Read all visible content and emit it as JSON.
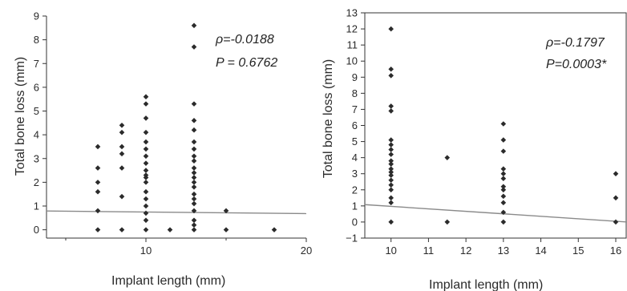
{
  "chart_data": [
    {
      "type": "scatter",
      "xlabel": "Implant length (mm)",
      "ylabel": "Total bone loss (mm)",
      "xlim": [
        3.8,
        20
      ],
      "ylim": [
        -0.35,
        9
      ],
      "xticks": [
        10,
        20
      ],
      "yticks": [
        0,
        1,
        2,
        3,
        4,
        5,
        6,
        7,
        8,
        9
      ],
      "x_tick_labels": [
        "10",
        "20"
      ],
      "y_tick_labels": [
        "0",
        "1",
        "2",
        "3",
        "4",
        "5",
        "6",
        "7",
        "8",
        "9"
      ],
      "annotations": [
        "ρ=-0.0188",
        "P = 0.6762"
      ],
      "trendline": {
        "x": [
          3.8,
          20
        ],
        "y": [
          0.79,
          0.68
        ]
      },
      "points": [
        [
          7,
          3.5
        ],
        [
          7,
          2.6
        ],
        [
          7,
          2.0
        ],
        [
          7,
          1.6
        ],
        [
          7,
          0.8
        ],
        [
          7,
          0.0
        ],
        [
          8.5,
          4.4
        ],
        [
          8.5,
          4.1
        ],
        [
          8.5,
          3.5
        ],
        [
          8.5,
          3.2
        ],
        [
          8.5,
          2.6
        ],
        [
          8.5,
          1.4
        ],
        [
          8.5,
          0.0
        ],
        [
          10,
          5.6
        ],
        [
          10,
          5.3
        ],
        [
          10,
          4.7
        ],
        [
          10,
          4.1
        ],
        [
          10,
          3.7
        ],
        [
          10,
          3.4
        ],
        [
          10,
          3.1
        ],
        [
          10,
          2.8
        ],
        [
          10,
          2.5
        ],
        [
          10,
          2.3
        ],
        [
          10,
          2.2
        ],
        [
          10,
          2.0
        ],
        [
          10,
          1.6
        ],
        [
          10,
          1.3
        ],
        [
          10,
          1.0
        ],
        [
          10,
          0.7
        ],
        [
          10,
          0.4
        ],
        [
          10,
          0.0
        ],
        [
          11.5,
          0.0
        ],
        [
          13,
          8.6
        ],
        [
          13,
          7.7
        ],
        [
          13,
          5.3
        ],
        [
          13,
          4.6
        ],
        [
          13,
          4.2
        ],
        [
          13,
          3.7
        ],
        [
          13,
          3.4
        ],
        [
          13,
          3.1
        ],
        [
          13,
          2.9
        ],
        [
          13,
          2.6
        ],
        [
          13,
          2.4
        ],
        [
          13,
          2.2
        ],
        [
          13,
          2.0
        ],
        [
          13,
          1.8
        ],
        [
          13,
          1.5
        ],
        [
          13,
          1.3
        ],
        [
          13,
          1.1
        ],
        [
          13,
          0.8
        ],
        [
          13,
          0.4
        ],
        [
          13,
          0.2
        ],
        [
          13,
          0.0
        ],
        [
          15,
          0.8
        ],
        [
          15,
          0.0
        ],
        [
          18,
          0.0
        ]
      ]
    },
    {
      "type": "scatter",
      "xlabel": "Implant length (mm)",
      "ylabel": "Total bone loss (mm)",
      "xlim": [
        9.3,
        16.3
      ],
      "ylim": [
        -1,
        13
      ],
      "xticks": [
        10,
        11,
        12,
        13,
        14,
        15,
        16
      ],
      "yticks": [
        -1,
        0,
        1,
        2,
        3,
        4,
        5,
        6,
        7,
        8,
        9,
        10,
        11,
        12,
        13
      ],
      "x_tick_labels": [
        "10",
        "11",
        "12",
        "13",
        "14",
        "15",
        "16"
      ],
      "y_tick_labels": [
        "−1",
        "0",
        "1",
        "2",
        "3",
        "4",
        "5",
        "6",
        "7",
        "8",
        "9",
        "10",
        "11",
        "12",
        "13"
      ],
      "annotations": [
        "ρ=-0.1797",
        "P=0.0003*"
      ],
      "trendline": {
        "x": [
          9.3,
          16.3
        ],
        "y": [
          1.08,
          0.0
        ]
      },
      "points": [
        [
          10,
          12.0
        ],
        [
          10,
          9.5
        ],
        [
          10,
          9.1
        ],
        [
          10,
          7.2
        ],
        [
          10,
          6.9
        ],
        [
          10,
          5.1
        ],
        [
          10,
          4.8
        ],
        [
          10,
          4.5
        ],
        [
          10,
          4.2
        ],
        [
          10,
          3.8
        ],
        [
          10,
          3.6
        ],
        [
          10,
          3.3
        ],
        [
          10,
          3.1
        ],
        [
          10,
          2.9
        ],
        [
          10,
          2.6
        ],
        [
          10,
          2.3
        ],
        [
          10,
          2.0
        ],
        [
          10,
          1.5
        ],
        [
          10,
          1.2
        ],
        [
          10,
          0.0
        ],
        [
          11.5,
          4.0
        ],
        [
          11.5,
          0.0
        ],
        [
          13,
          6.1
        ],
        [
          13,
          5.1
        ],
        [
          13,
          4.4
        ],
        [
          13,
          3.3
        ],
        [
          13,
          3.0
        ],
        [
          13,
          2.7
        ],
        [
          13,
          2.2
        ],
        [
          13,
          2.0
        ],
        [
          13,
          1.6
        ],
        [
          13,
          1.2
        ],
        [
          13,
          0.6
        ],
        [
          13,
          0.0
        ],
        [
          16,
          3.0
        ],
        [
          16,
          1.5
        ],
        [
          16,
          0.0
        ]
      ]
    }
  ]
}
